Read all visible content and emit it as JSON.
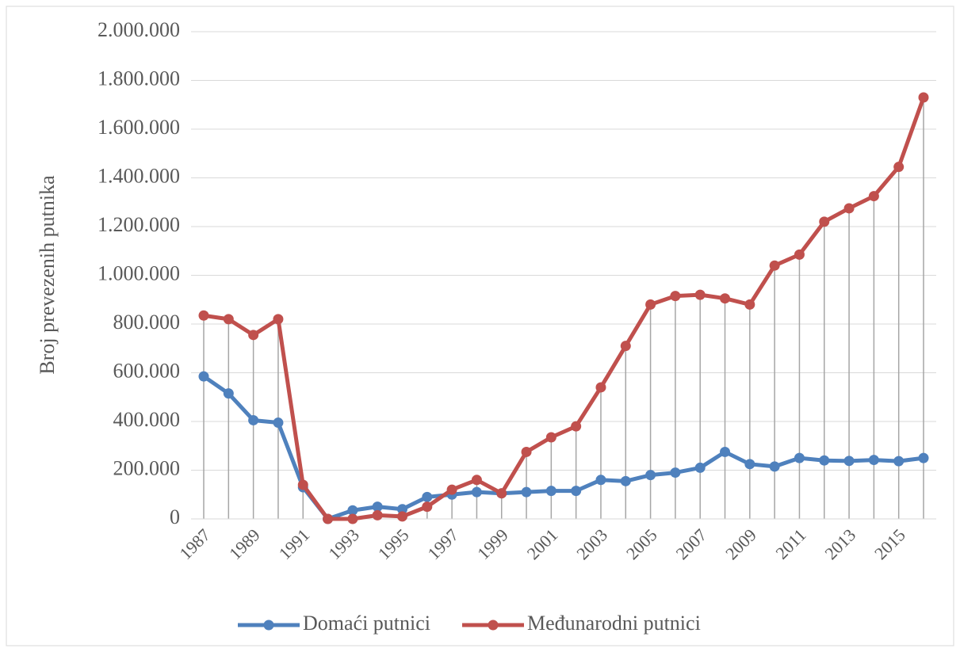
{
  "chart_data": {
    "type": "line",
    "y_label": "Broj prevezenih putnika",
    "categories": [
      "1987",
      null,
      "1989",
      null,
      "1991",
      null,
      "1993",
      null,
      "1995",
      null,
      "1997",
      null,
      "1999",
      null,
      "2001",
      null,
      "2003",
      null,
      "2005",
      null,
      "2007",
      null,
      "2009",
      null,
      "2011",
      null,
      "2013",
      null,
      "2015",
      null
    ],
    "series": [
      {
        "name": "Domaći putnici",
        "color": "#4f81bd",
        "values": [
          585000,
          515000,
          405000,
          395000,
          130000,
          0,
          35000,
          50000,
          40000,
          90000,
          100000,
          110000,
          105000,
          110000,
          115000,
          115000,
          160000,
          155000,
          180000,
          190000,
          210000,
          275000,
          225000,
          215000,
          250000,
          240000,
          238000,
          242000,
          237000,
          250000
        ]
      },
      {
        "name": "Međunarodni putnici",
        "color": "#c0504d",
        "values": [
          835000,
          820000,
          755000,
          820000,
          140000,
          0,
          0,
          15000,
          10000,
          50000,
          120000,
          160000,
          105000,
          275000,
          335000,
          380000,
          540000,
          710000,
          880000,
          915000,
          920000,
          905000,
          880000,
          1040000,
          1085000,
          1220000,
          1275000,
          1325000,
          1445000,
          1730000
        ]
      }
    ],
    "ylim": [
      0,
      2000000
    ],
    "yticks": [
      0,
      {
        "value": 200000,
        "label": "200.000"
      },
      {
        "value": 400000,
        "label": "400.000"
      },
      {
        "value": 600000,
        "label": "600.000"
      },
      {
        "value": 800000,
        "label": "800.000"
      },
      {
        "value": 1000000,
        "label": "1.000.000"
      },
      {
        "value": 1200000,
        "label": "1.200.000"
      },
      {
        "value": 1400000,
        "label": "1.400.000"
      },
      {
        "value": 1600000,
        "label": "1.600.000"
      },
      {
        "value": 1800000,
        "label": "1.800.000"
      },
      {
        "value": 2000000,
        "label": "2.000.000"
      }
    ],
    "grid": true,
    "drop_lines": true,
    "legend": "bottom"
  }
}
